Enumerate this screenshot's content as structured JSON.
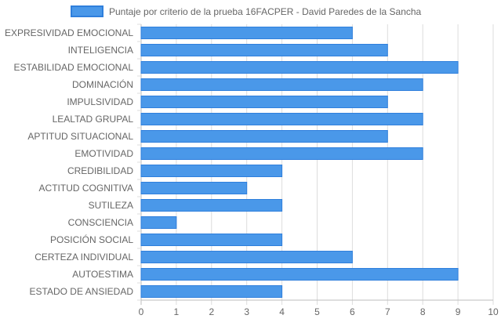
{
  "chart_data": {
    "type": "bar",
    "orientation": "horizontal",
    "categories": [
      "EXPRESIVIDAD EMOCIONAL",
      "INTELIGENCIA",
      "ESTABILIDAD EMOCIONAL",
      "DOMINACIÓN",
      "IMPULSIVIDAD",
      "LEALTAD GRUPAL",
      "APTITUD SITUACIONAL",
      "EMOTIVIDAD",
      "CREDIBILIDAD",
      "ACTITUD COGNITIVA",
      "SUTILEZA",
      "CONSCIENCIA",
      "POSICIÓN SOCIAL",
      "CERTEZA INDIVIDUAL",
      "AUTOESTIMA",
      "ESTADO DE ANSIEDAD"
    ],
    "series": [
      {
        "name": "Puntaje por criterio de la prueba 16FACPER - David Paredes de la Sancha",
        "values": [
          6,
          7,
          9,
          8,
          7,
          8,
          7,
          8,
          4,
          3,
          4,
          1,
          4,
          6,
          9,
          4
        ],
        "color": "#4a98e9",
        "border_color": "#2f7fdc"
      }
    ],
    "xlim": [
      0,
      10
    ],
    "x_ticks": [
      "0",
      "1",
      "2",
      "3",
      "4",
      "5",
      "6",
      "7",
      "8",
      "9",
      "10"
    ],
    "grid": true,
    "legend_position": "top"
  }
}
